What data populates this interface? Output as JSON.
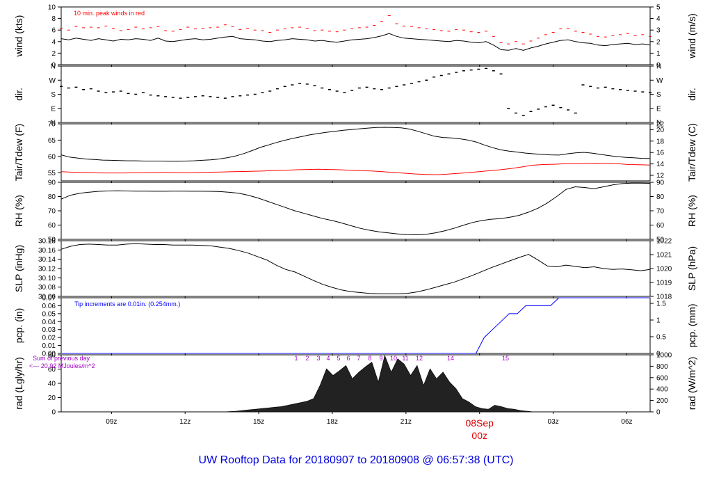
{
  "title": "UW Rooftop Data for 20180907  to  20180908 @ 06:57:38  (UTC)",
  "colors": {
    "data": "#000000",
    "peak": "#ff0000",
    "dew": "#ff0000",
    "precip": "#0000ff",
    "rad_note": "#a000c8",
    "title": "#0000dd",
    "date_marker": "#dd0000"
  },
  "time_axis": {
    "tick_labels": [
      "09z",
      "12z",
      "15z",
      "18z",
      "21z",
      "03z",
      "06z"
    ],
    "tick_hours": [
      9,
      12,
      15,
      18,
      21,
      27,
      30
    ],
    "date_label": "08Sep",
    "date_sublabel": "00z",
    "date_hour": 24,
    "start_hour": 6.95,
    "end_hour": 30.95
  },
  "chart_data": [
    {
      "type": "line",
      "id": "wind",
      "ylabel_left": "wind (kts)",
      "ylabel_right": "wind (m/s)",
      "annotation": "10 min. peak winds in red",
      "ylim": [
        0,
        10
      ],
      "left_ticks": [
        "0",
        "2",
        "4",
        "6",
        "8",
        "10"
      ],
      "right_ticks": [
        "0",
        "1",
        "2",
        "3",
        "4",
        "5"
      ],
      "series": [
        {
          "values": [
            4.5,
            4.3,
            4.6,
            4.4,
            4.2,
            4.5,
            4.3,
            4.1,
            4.4,
            4.3,
            4.5,
            4.4,
            4.2,
            4.6,
            4.1,
            4.0,
            4.2,
            4.4,
            4.5,
            4.3,
            4.4,
            4.6,
            4.8,
            4.9,
            4.5,
            4.4,
            4.3,
            4.1,
            4.0,
            4.2,
            4.3,
            4.5,
            4.4,
            4.3,
            4.1,
            4.2,
            4.0,
            3.9,
            4.1,
            4.3,
            4.4,
            4.5,
            4.7,
            5.0,
            5.4,
            4.9,
            4.6,
            4.5,
            4.4,
            4.3,
            4.2,
            4.1,
            4.0,
            4.2,
            4.1,
            3.9,
            3.8,
            4.0,
            3.4,
            2.6,
            2.5,
            2.8,
            2.5,
            2.9,
            3.2,
            3.6,
            3.9,
            4.2,
            4.3,
            4.0,
            3.8,
            3.7,
            3.4,
            3.3,
            3.5,
            3.6,
            3.7,
            3.5,
            3.6,
            3.4
          ]
        }
      ],
      "peak_values": [
        6.3,
        6.0,
        6.6,
        6.4,
        6.5,
        6.4,
        6.7,
        6.3,
        5.9,
        6.1,
        6.5,
        6.2,
        6.4,
        6.6,
        5.9,
        5.8,
        6.1,
        6.5,
        6.2,
        6.3,
        6.4,
        6.5,
        6.9,
        6.6,
        6.1,
        6.3,
        6.0,
        5.9,
        5.6,
        6.0,
        6.2,
        6.4,
        6.5,
        6.3,
        5.9,
        6.0,
        5.8,
        5.7,
        6.0,
        6.2,
        6.4,
        6.5,
        6.8,
        7.5,
        8.5,
        7.1,
        6.7,
        6.6,
        6.4,
        6.2,
        6.1,
        5.9,
        5.8,
        6.1,
        6.0,
        5.7,
        5.6,
        5.8,
        4.9,
        3.8,
        3.6,
        4.0,
        3.6,
        4.1,
        4.6,
        5.2,
        5.6,
        6.2,
        6.3,
        5.8,
        5.6,
        5.3,
        4.9,
        4.8,
        5.0,
        5.2,
        5.4,
        5.0,
        5.2,
        4.9
      ]
    },
    {
      "type": "scatter",
      "id": "dir",
      "ylabel_left": "dir.",
      "ylabel_right": "dir.",
      "ylim": [
        0,
        360
      ],
      "left_ticks": [
        "N",
        "E",
        "S",
        "W",
        "N"
      ],
      "right_ticks": [
        "N",
        "E",
        "S",
        "W",
        "N"
      ],
      "series": [
        {
          "values": [
            230,
            220,
            225,
            210,
            215,
            200,
            190,
            195,
            200,
            185,
            180,
            190,
            175,
            170,
            165,
            160,
            155,
            160,
            165,
            170,
            165,
            160,
            155,
            165,
            170,
            175,
            180,
            190,
            200,
            215,
            230,
            240,
            250,
            245,
            235,
            220,
            210,
            200,
            190,
            205,
            220,
            225,
            215,
            210,
            220,
            230,
            240,
            250,
            260,
            270,
            290,
            300,
            310,
            320,
            330,
            335,
            340,
            345,
            330,
            310,
            90,
            60,
            45,
            70,
            85,
            100,
            110,
            95,
            80,
            60,
            240,
            230,
            220,
            225,
            215,
            210,
            205,
            200,
            195,
            190
          ]
        }
      ]
    },
    {
      "type": "line",
      "id": "temp",
      "ylabel_left": "Tair/Tdew (F)",
      "ylabel_right": "Tair/Tdew (C)",
      "ylim": [
        50,
        73
      ],
      "left_ticks": [
        "55",
        "60",
        "65",
        "70"
      ],
      "right_ticks": [
        "12",
        "14",
        "16",
        "18",
        "20",
        "22"
      ],
      "series": [
        {
          "name": "Tair",
          "values": [
            60.5,
            59.6,
            59.2,
            58.8,
            58.6,
            58.4,
            58.3,
            58.2,
            58.1,
            58.1,
            58.0,
            58.0,
            58.0,
            57.9,
            57.9,
            58.0,
            58.1,
            58.3,
            58.5,
            58.8,
            59.3,
            60.0,
            61.0,
            62.2,
            63.5,
            64.5,
            65.5,
            66.4,
            67.2,
            67.9,
            68.6,
            69.1,
            69.6,
            70.0,
            70.4,
            70.7,
            71.0,
            71.3,
            71.5,
            71.6,
            71.5,
            71.4,
            70.9,
            70.0,
            69.0,
            68.0,
            67.5,
            67.3,
            67.0,
            66.5,
            65.7,
            64.5,
            63.4,
            62.5,
            62.0,
            61.6,
            61.2,
            60.9,
            60.7,
            60.5,
            60.4,
            60.9,
            61.3,
            61.5,
            61.2,
            60.7,
            60.2,
            59.8,
            59.5,
            59.3,
            59.1,
            59.0
          ]
        },
        {
          "name": "Tdew",
          "values": [
            53.7,
            53.5,
            53.4,
            53.3,
            53.2,
            53.2,
            53.2,
            53.3,
            53.3,
            53.4,
            53.4,
            53.3,
            53.3,
            53.4,
            53.5,
            53.6,
            53.7,
            53.8,
            53.9,
            54.0,
            54.2,
            54.3,
            54.5,
            54.6,
            54.7,
            54.6,
            54.5,
            54.3,
            54.1,
            54.0,
            53.7,
            53.4,
            53.1,
            52.8,
            52.6,
            52.5,
            52.7,
            53.0,
            53.3,
            53.7,
            54.1,
            54.5,
            55.0,
            55.6,
            56.3,
            56.6,
            56.7,
            56.9,
            56.9,
            57.0,
            57.1,
            57.0,
            56.9,
            56.6,
            56.5,
            56.4
          ]
        }
      ]
    },
    {
      "type": "line",
      "id": "rh",
      "ylabel_left": "RH (%)",
      "ylabel_right": "RH (%)",
      "ylim": [
        46,
        90
      ],
      "left_ticks": [
        "50",
        "60",
        "70",
        "80",
        "90"
      ],
      "right_ticks": [
        "50",
        "60",
        "70",
        "80",
        "90"
      ],
      "series": [
        {
          "values": [
            77.0,
            80.0,
            81.5,
            82.4,
            83.0,
            83.3,
            83.4,
            83.3,
            83.2,
            83.2,
            83.1,
            83.1,
            83.2,
            83.2,
            83.1,
            83.1,
            83.0,
            82.8,
            82.3,
            81.5,
            80.0,
            78.0,
            75.5,
            73.0,
            70.5,
            68.0,
            66.0,
            64.0,
            62.0,
            60.5,
            58.6,
            56.5,
            54.5,
            53.0,
            51.8,
            51.0,
            50.2,
            49.6,
            49.5,
            49.8,
            51.0,
            52.5,
            54.5,
            56.8,
            59.0,
            60.5,
            61.5,
            62.0,
            63.0,
            64.5,
            67.0,
            70.0,
            74.0,
            79.0,
            84.5,
            86.5,
            86.0,
            85.0,
            86.5,
            88.0,
            89.0,
            89.3,
            89.3,
            89.2
          ]
        }
      ]
    },
    {
      "type": "line",
      "id": "slp",
      "ylabel_left": "SLP (inHg)",
      "ylabel_right": "SLP (hPa)",
      "ylim": [
        30.055,
        30.185
      ],
      "left_ticks": [
        "30.06",
        "30.08",
        "30.10",
        "30.12",
        "30.14",
        "30.16",
        "30.18"
      ],
      "right_ticks": [
        "1018",
        "1019",
        "1020",
        "1021",
        "1022"
      ],
      "series": [
        {
          "values": [
            30.165,
            30.172,
            30.176,
            30.177,
            30.176,
            30.175,
            30.175,
            30.177,
            30.178,
            30.177,
            30.176,
            30.176,
            30.175,
            30.175,
            30.175,
            30.174,
            30.173,
            30.17,
            30.167,
            30.162,
            30.156,
            30.148,
            30.14,
            30.128,
            30.118,
            30.112,
            30.102,
            30.092,
            30.083,
            30.076,
            30.07,
            30.066,
            30.064,
            30.062,
            30.061,
            30.061,
            30.061,
            30.062,
            30.065,
            30.07,
            30.076,
            30.082,
            30.088,
            30.096,
            30.104,
            30.113,
            30.122,
            30.13,
            30.138,
            30.146,
            30.153,
            30.14,
            30.126,
            30.124,
            30.128,
            30.125,
            30.122,
            30.124,
            30.12,
            30.118,
            30.119,
            30.117,
            30.115,
            30.118
          ]
        }
      ]
    },
    {
      "type": "line",
      "id": "pcp",
      "ylabel_left": "pcp. (in)",
      "ylabel_right": "pcp. (mm)",
      "annotation": "Tip increments are 0.01in. (0.254mm.)",
      "ylim": [
        0,
        0.07
      ],
      "left_ticks": [
        "0.00",
        "0.01",
        "0.02",
        "0.03",
        "0.04",
        "0.05",
        "0.06",
        "0.07"
      ],
      "right_ticks": [
        "0",
        "0.5",
        "1",
        "1.5"
      ],
      "series": [
        {
          "values": [
            0,
            0,
            0,
            0,
            0,
            0,
            0,
            0,
            0,
            0,
            0,
            0,
            0,
            0,
            0,
            0,
            0,
            0,
            0,
            0,
            0,
            0,
            0,
            0,
            0,
            0,
            0,
            0,
            0,
            0,
            0,
            0,
            0,
            0,
            0,
            0,
            0,
            0,
            0,
            0,
            0,
            0,
            0,
            0,
            0,
            0,
            0,
            0,
            0,
            0,
            0,
            0.02,
            0.03,
            0.04,
            0.05,
            0.05,
            0.06,
            0.06,
            0.06,
            0.06,
            0.07,
            0.07,
            0.07,
            0.07,
            0.07,
            0.07,
            0.07,
            0.07,
            0.07,
            0.07,
            0.07,
            0.07
          ]
        }
      ]
    },
    {
      "type": "area",
      "id": "rad",
      "ylabel_left": "rad (Lgly/hr)",
      "ylabel_right": "rad (W/m^2)",
      "ylim": [
        0,
        86
      ],
      "left_ticks": [
        "0",
        "20",
        "40",
        "60",
        "80"
      ],
      "right_ticks": [
        "0",
        "200",
        "400",
        "600",
        "800",
        "1000"
      ],
      "note_line1": "Sum of previous day",
      "note_line2": "<--- 20.92 MJoules/m^2",
      "event_labels": [
        "1",
        "2",
        "3",
        "4",
        "5",
        "6",
        "7",
        "8",
        "9",
        "10",
        "11",
        "12",
        "14",
        "15"
      ],
      "series": [
        {
          "values": [
            0,
            0,
            0,
            0,
            0,
            0,
            0,
            0,
            0,
            0,
            0,
            0,
            0,
            0,
            0,
            0,
            0,
            0,
            0,
            0,
            0,
            0,
            0,
            0,
            0,
            0,
            0.5,
            1,
            2,
            3,
            4,
            5,
            6,
            7,
            8,
            10,
            12,
            14,
            16,
            20,
            40,
            65,
            55,
            62,
            70,
            50,
            60,
            68,
            75,
            45,
            85,
            60,
            80,
            72,
            55,
            70,
            40,
            65,
            50,
            60,
            45,
            35,
            20,
            15,
            8,
            5,
            4,
            10,
            8,
            5,
            4,
            2,
            1,
            0,
            0,
            0,
            0,
            0,
            0,
            0,
            0,
            0,
            0,
            0,
            0,
            0,
            0,
            0,
            0,
            0,
            0,
            0
          ]
        }
      ]
    }
  ]
}
